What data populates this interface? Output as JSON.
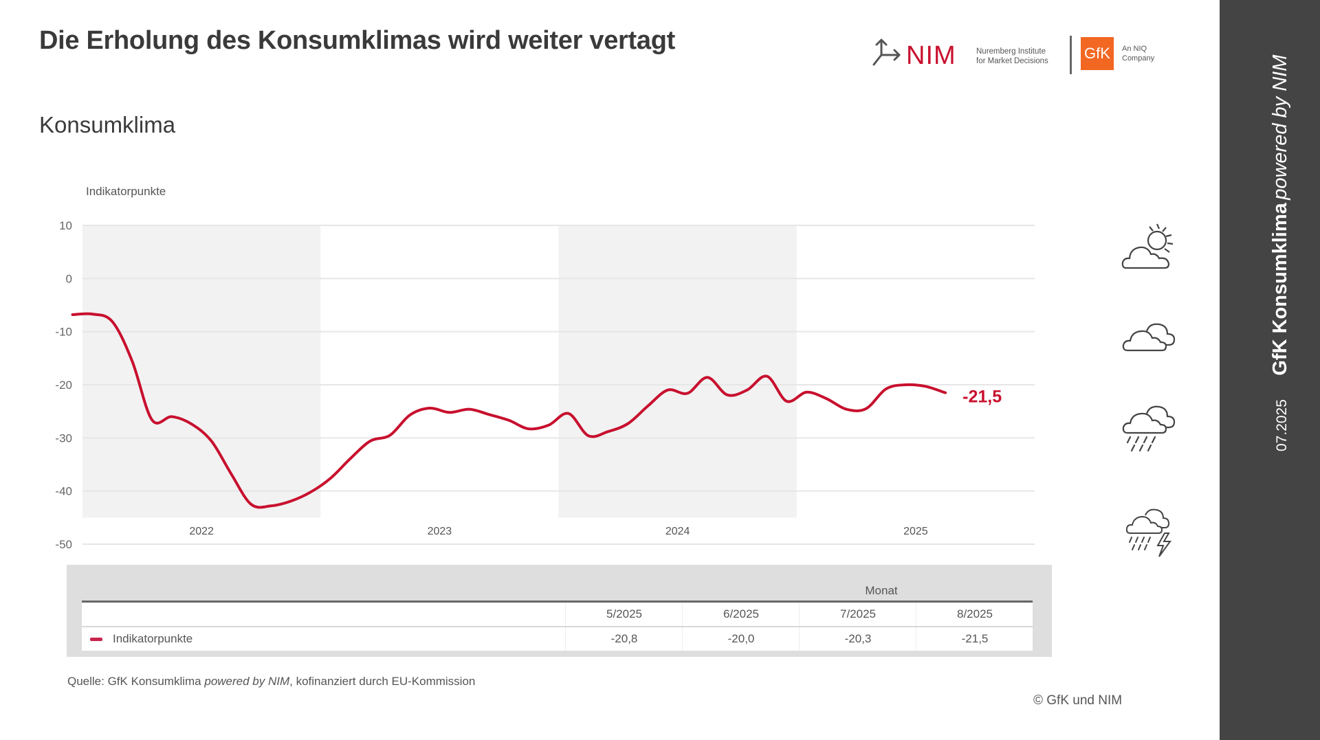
{
  "header": {
    "title": "Die Erholung des Konsumklimas wird weiter vertagt",
    "subtitle": "Konsumklima"
  },
  "logos": {
    "nim_word": "NIM",
    "nim_line1": "Nuremberg Institute",
    "nim_line2": "for Market Decisions",
    "gfk_word": "GfK",
    "gfk_line1": "An NIQ",
    "gfk_line2": "Company",
    "colors": {
      "nim_red": "#c8102e",
      "gfk_orange": "#f26722"
    }
  },
  "sidebar": {
    "date": "07.2025",
    "brand": "GfK Konsumklima",
    "powered": "powered by NIM",
    "background": "#444444"
  },
  "weather_icons": [
    "sun-behind-cloud-icon",
    "clouds-icon",
    "rain-cloud-icon",
    "thunderstorm-icon"
  ],
  "chart_data": {
    "type": "line",
    "title": "Konsumklima",
    "ylabel": "Indikatorpunkte",
    "xlabel": "",
    "ylim": [
      -50,
      10
    ],
    "yticks": [
      10,
      0,
      -10,
      -20,
      -30,
      -40,
      -50
    ],
    "year_labels": [
      "2022",
      "2023",
      "2024",
      "2025"
    ],
    "shaded_years": [
      "2022",
      "2024"
    ],
    "grid": true,
    "line_color": "#c8102e",
    "end_label": "-21,5",
    "series": [
      {
        "name": "Indikatorpunkte",
        "x": [
          "12/2021",
          "1/2022",
          "2/2022",
          "3/2022",
          "4/2022",
          "5/2022",
          "6/2022",
          "7/2022",
          "8/2022",
          "9/2022",
          "10/2022",
          "11/2022",
          "12/2022",
          "1/2023",
          "2/2023",
          "3/2023",
          "4/2023",
          "5/2023",
          "6/2023",
          "7/2023",
          "8/2023",
          "9/2023",
          "10/2023",
          "11/2023",
          "12/2023",
          "1/2024",
          "2/2024",
          "3/2024",
          "4/2024",
          "5/2024",
          "6/2024",
          "7/2024",
          "8/2024",
          "9/2024",
          "10/2024",
          "11/2024",
          "12/2024",
          "1/2025",
          "2/2025",
          "3/2025",
          "4/2025",
          "5/2025",
          "6/2025",
          "7/2025",
          "8/2025"
        ],
        "values": [
          -6.8,
          -6.7,
          -8.1,
          -15.5,
          -26.6,
          -26.0,
          -27.4,
          -30.6,
          -36.8,
          -42.5,
          -42.8,
          -41.9,
          -40.2,
          -37.6,
          -33.9,
          -30.6,
          -29.5,
          -25.7,
          -24.4,
          -25.2,
          -24.6,
          -25.6,
          -26.7,
          -28.3,
          -27.6,
          -25.4,
          -29.6,
          -28.8,
          -27.3,
          -24.0,
          -21.0,
          -21.6,
          -18.6,
          -21.9,
          -21.0,
          -18.4,
          -23.1,
          -21.4,
          -22.6,
          -24.6,
          -24.5,
          -20.8,
          -20.0,
          -20.3,
          -21.5
        ]
      }
    ],
    "table": {
      "header": "Monat",
      "columns": [
        "5/2025",
        "6/2025",
        "7/2025",
        "8/2025"
      ],
      "rows": [
        {
          "label": "Indikatorpunkte",
          "values": [
            "-20,8",
            "-20,0",
            "-20,3",
            "-21,5"
          ]
        }
      ]
    }
  },
  "footer": {
    "source_prefix": "Quelle: GfK Konsumklima ",
    "source_italic": "powered by NIM",
    "source_suffix": ", kofinanziert durch EU-Kommission",
    "copyright": "© GfK und NIM"
  }
}
